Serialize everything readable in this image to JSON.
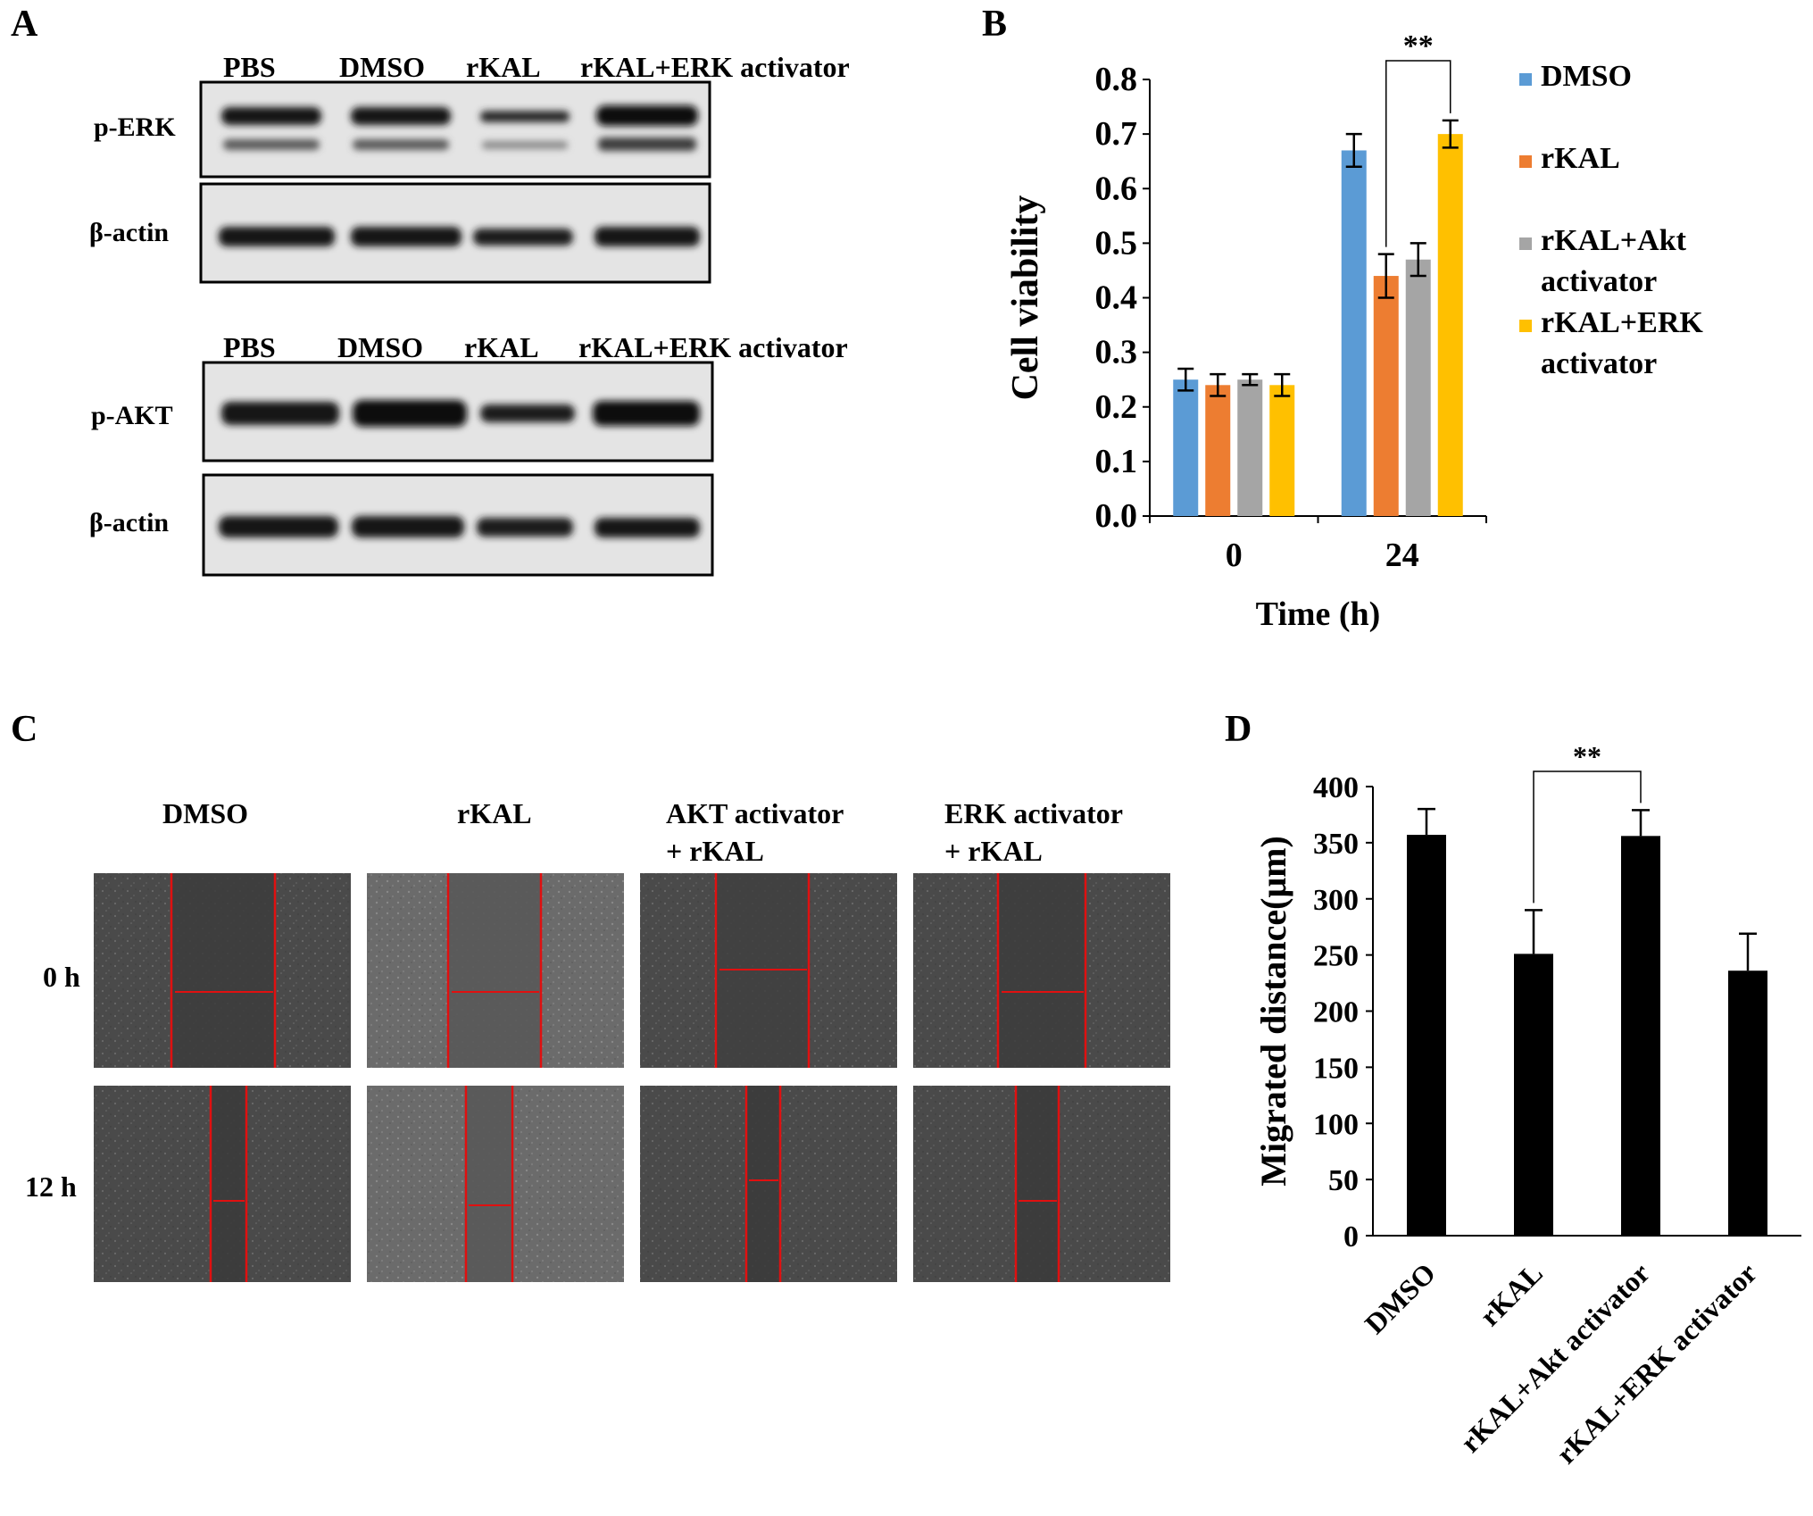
{
  "panels": {
    "A": {
      "letter": "A",
      "blot1": {
        "lanes": [
          "PBS",
          "DMSO",
          "rKAL",
          "rKAL+ERK activator"
        ],
        "rows": [
          "p-ERK",
          "β-actin"
        ]
      },
      "blot2": {
        "lanes": [
          "PBS",
          "DMSO",
          "rKAL",
          "rKAL+ERK activator"
        ],
        "rows": [
          "p-AKT",
          "β-actin"
        ]
      }
    },
    "B": {
      "letter": "B"
    },
    "C": {
      "letter": "C",
      "columns": [
        "DMSO",
        "rKAL",
        "AKT activator",
        "ERK activator"
      ],
      "columns_line2": [
        "",
        "",
        "+ rKAL",
        "+ rKAL"
      ],
      "rows": [
        "0 h",
        "12 h"
      ]
    },
    "D": {
      "letter": "D"
    }
  },
  "chart_data": [
    {
      "panel": "B",
      "type": "bar",
      "categories": [
        "0",
        "24"
      ],
      "xlabel": "Time (h)",
      "ylabel": "Cell viability",
      "ylim": [
        0.0,
        0.8
      ],
      "yticks": [
        "0.0",
        "0.1",
        "0.2",
        "0.3",
        "0.4",
        "0.5",
        "0.6",
        "0.7",
        "0.8"
      ],
      "series": [
        {
          "name": "DMSO",
          "values": [
            0.25,
            0.67
          ],
          "errors": [
            0.02,
            0.03
          ],
          "color": "#5b9bd5"
        },
        {
          "name": "rKAL",
          "values": [
            0.24,
            0.44
          ],
          "errors": [
            0.02,
            0.04
          ],
          "color": "#ed7d31"
        },
        {
          "name": "rKAL+Akt activator",
          "values": [
            0.25,
            0.47
          ],
          "errors": [
            0.01,
            0.03
          ],
          "color": "#a5a5a5"
        },
        {
          "name": "rKAL+ERK activator",
          "values": [
            0.24,
            0.7
          ],
          "errors": [
            0.02,
            0.025
          ],
          "color": "#ffc000"
        }
      ],
      "legend_lines": [
        [
          "DMSO"
        ],
        [
          "rKAL"
        ],
        [
          "rKAL+Akt",
          "activator"
        ],
        [
          "rKAL+ERK",
          "activator"
        ]
      ],
      "legend_position": "right",
      "significance": {
        "label": "**",
        "category": "24",
        "from_series": 1,
        "to_series": 3
      }
    },
    {
      "panel": "D",
      "type": "bar",
      "categories": [
        "DMSO",
        "rKAL",
        "rKAL+Akt activator",
        "rKAL+ERK activator"
      ],
      "values": [
        357,
        251,
        356,
        236
      ],
      "errors": [
        23,
        39,
        23,
        33
      ],
      "color": "#000000",
      "xlabel": "",
      "ylabel": "Migrated distance(μm)",
      "ylim": [
        0,
        400
      ],
      "yticks": [
        "0",
        "50",
        "100",
        "150",
        "200",
        "250",
        "300",
        "350",
        "400"
      ],
      "significance": {
        "label": "**",
        "from_category": 1,
        "to_category": 2
      }
    }
  ]
}
